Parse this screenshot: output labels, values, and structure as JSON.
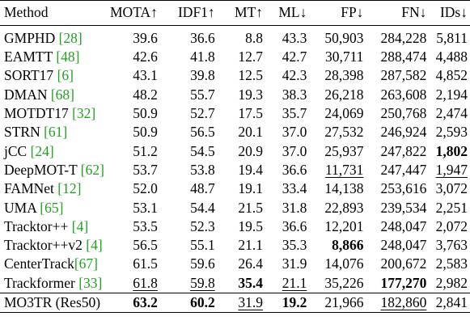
{
  "table": {
    "headers": [
      "Method",
      "MOTA↑",
      "IDF1↑",
      "MT↑",
      "ML↓",
      "FP↓",
      "FN↓",
      "IDs↓"
    ],
    "rows": [
      {
        "name": "GMPHD",
        "ref": "[28]",
        "mota": "39.6",
        "idf1": "36.6",
        "mt": "8.8",
        "ml": "43.3",
        "fp": "50,903",
        "fn": "284,228",
        "ids": "5,811"
      },
      {
        "name": "EAMTT",
        "ref": "[48]",
        "mota": "42.6",
        "idf1": "41.8",
        "mt": "12.7",
        "ml": "42.7",
        "fp": "30,711",
        "fn": "288,474",
        "ids": "4,488"
      },
      {
        "name": "SORT17",
        "ref": "[6]",
        "mota": "43.1",
        "idf1": "39.8",
        "mt": "12.5",
        "ml": "42.3",
        "fp": "28,398",
        "fn": "287,582",
        "ids": "4,852"
      },
      {
        "name": "DMAN",
        "ref": "[68]",
        "mota": "48.2",
        "idf1": "55.7",
        "mt": "19.3",
        "ml": "38.3",
        "fp": "26,218",
        "fn": "263,608",
        "ids": "2,194"
      },
      {
        "name": "MOTDT17",
        "ref": "[32]",
        "mota": "50.9",
        "idf1": "52.7",
        "mt": "17.5",
        "ml": "35.7",
        "fp": "24,069",
        "fn": "250,768",
        "ids": "2,474"
      },
      {
        "name": "STRN",
        "ref": "[61]",
        "mota": "50.9",
        "idf1": "56.5",
        "mt": "20.1",
        "ml": "37.0",
        "fp": "27,532",
        "fn": "246,924",
        "ids": "2,593"
      },
      {
        "name": "jCC",
        "ref": "[24]",
        "mota": "51.2",
        "idf1": "54.5",
        "mt": "20.9",
        "ml": "37.0",
        "fp": "25,937",
        "fn": "247,822",
        "ids": "1,802"
      },
      {
        "name": "DeepMOT-T",
        "ref": "[62]",
        "mota": "53.7",
        "idf1": "53.8",
        "mt": "19.4",
        "ml": "36.6",
        "fp": "11,731",
        "fn": "247,447",
        "ids": "1,947"
      },
      {
        "name": "FAMNet",
        "ref": "[12]",
        "mota": "52.0",
        "idf1": "48.7",
        "mt": "19.1",
        "ml": "33.4",
        "fp": "14,138",
        "fn": "253,616",
        "ids": "3,072"
      },
      {
        "name": "UMA",
        "ref": "[65]",
        "mota": "53.1",
        "idf1": "54.4",
        "mt": "21.5",
        "ml": "31.8",
        "fp": "22,893",
        "fn": "239,534",
        "ids": "2,251"
      },
      {
        "name": "Tracktor++",
        "ref": "[4]",
        "mota": "53.5",
        "idf1": "52.3",
        "mt": "19.5",
        "ml": "36.6",
        "fp": "12,201",
        "fn": "248,047",
        "ids": "2,072"
      },
      {
        "name": "Tracktor++v2",
        "ref": "[4]",
        "mota": "56.5",
        "idf1": "55.1",
        "mt": "21.1",
        "ml": "35.3",
        "fp": "8,866",
        "fn": "248,047",
        "ids": "3,763"
      },
      {
        "name": "CenterTrack",
        "ref": "[67]",
        "mota": "61.5",
        "idf1": "59.6",
        "mt": "26.4",
        "ml": "31.9",
        "fp": "14,076",
        "fn": "200,672",
        "ids": "2,583"
      },
      {
        "name": "Trackformer",
        "ref": "[33]",
        "mota": "61.8",
        "idf1": "59.8",
        "mt": "35.4",
        "ml": "21.1",
        "fp": "35,226",
        "fn": "177,270",
        "ids": "2,982"
      },
      {
        "name": "MO3TR (Res50)",
        "ref": "",
        "mota": "63.2",
        "idf1": "60.2",
        "mt": "31.9",
        "ml": "19.2",
        "fp": "21,966",
        "fn": "182,860",
        "ids": "2,841"
      }
    ]
  },
  "colors": {
    "reference_link": "#22a022",
    "text": "#000000"
  }
}
